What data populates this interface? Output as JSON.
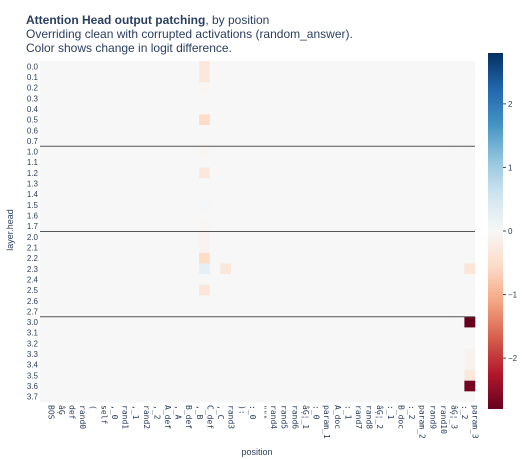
{
  "title": {
    "bold": "Attention Head output patching",
    "rest": ", by position",
    "line2": "Overriding clean with corrupted activations (random_answer).",
    "line3": "Color shows change in logit difference."
  },
  "chart_data": {
    "type": "heatmap",
    "xlabel": "position",
    "ylabel": "layer.head",
    "x_categories": [
      "BOS",
      "âĢ",
      "def",
      "rand0",
      "(",
      "self",
      ",_0",
      "rand1",
      ",_1",
      "rand2",
      ",_2",
      "A_def",
      ",_A",
      "B_def",
      ",_B",
      "C_def",
      ",_C",
      "rand3",
      "):",
      ":_0",
      "\"\"\"",
      "rand4",
      "rand5",
      "rand6",
      "âĢ¦_1",
      ":_0",
      "param_1",
      "A_doc",
      ":_1",
      "rand7",
      "rand8",
      "âĢ¦_2",
      ":_1",
      "B_doc",
      ":_2",
      "param_2",
      "rand9",
      "rand10",
      "âĢ¦_3",
      ":_2",
      "param_3"
    ],
    "y_categories": [
      "0.0",
      "0.1",
      "0.2",
      "0.3",
      "0.4",
      "0.5",
      "0.6",
      "0.7",
      "1.0",
      "1.1",
      "1.2",
      "1.3",
      "1.4",
      "1.5",
      "1.6",
      "1.7",
      "2.0",
      "2.1",
      "2.2",
      "2.3",
      "2.4",
      "2.5",
      "2.6",
      "2.7",
      "3.0",
      "3.1",
      "3.2",
      "3.3",
      "3.4",
      "3.5",
      "3.6",
      "3.7"
    ],
    "values_sparse": [
      {
        "y": "0.0",
        "x": "C_def",
        "value": -0.3
      },
      {
        "y": "0.1",
        "x": "C_def",
        "value": -0.3
      },
      {
        "y": "0.2",
        "x": "C_def",
        "value": -0.05
      },
      {
        "y": "0.5",
        "x": "C_def",
        "value": -0.55
      },
      {
        "y": "1.0",
        "x": "C_def",
        "value": -0.05
      },
      {
        "y": "1.2",
        "x": "C_def",
        "value": -0.3
      },
      {
        "y": "1.5",
        "x": "C_def",
        "value": 0.04
      },
      {
        "y": "1.7",
        "x": "C_def",
        "value": -0.05
      },
      {
        "y": "2.0",
        "x": "C_def",
        "value": -0.08
      },
      {
        "y": "2.1",
        "x": "C_def",
        "value": -0.08
      },
      {
        "y": "2.2",
        "x": "C_def",
        "value": -0.55
      },
      {
        "y": "2.3",
        "x": "C_def",
        "value": 0.25
      },
      {
        "y": "2.3",
        "x": "rand3",
        "value": -0.3
      },
      {
        "y": "2.5",
        "x": "C_def",
        "value": -0.35
      },
      {
        "y": "2.3",
        "x": "param_3",
        "value": -0.35
      },
      {
        "y": "3.0",
        "x": "param_3",
        "value": -2.8
      },
      {
        "y": "3.3",
        "x": "param_3",
        "value": -0.1
      },
      {
        "y": "3.4",
        "x": "param_3",
        "value": -0.1
      },
      {
        "y": "3.5",
        "x": "param_3",
        "value": -0.3
      },
      {
        "y": "3.6",
        "x": "param_3",
        "value": -2.7
      }
    ],
    "default_value": 0,
    "zlim": [
      -2.8,
      2.8
    ],
    "colorscale": "RdBu",
    "colorbar_ticks": [
      2,
      1,
      0,
      -1,
      -2
    ],
    "colorbar_tick_labels": [
      "2",
      "1",
      "0",
      "−1",
      "−2"
    ],
    "layer_separators_after": [
      "0.7",
      "1.7",
      "2.7"
    ]
  }
}
